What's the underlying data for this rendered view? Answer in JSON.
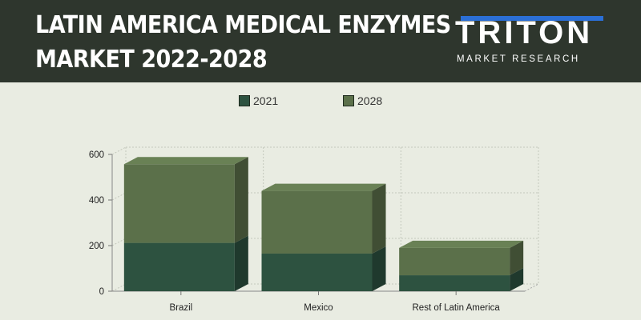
{
  "header": {
    "title_line1": "LATIN AMERICA MEDICAL ENZYMES",
    "title_line2": "MARKET 2022-2028"
  },
  "logo": {
    "name": "TRITON",
    "tagline": "MARKET RESEARCH",
    "accent_color": "#2b6fd6"
  },
  "chart_data": {
    "type": "bar",
    "stacked": true,
    "three_d": true,
    "categories": [
      "Brazil",
      "Mexico",
      "Rest of Latin America"
    ],
    "series": [
      {
        "name": "2021",
        "values": [
          212,
          165,
          70
        ],
        "color": "#2d5240"
      },
      {
        "name": "2028",
        "values": [
          345,
          275,
          120
        ],
        "color": "#5b704a"
      }
    ],
    "ylim": [
      0,
      600
    ],
    "yticks": [
      0,
      200,
      400,
      600
    ],
    "grid": true,
    "legend_position": "top-center"
  }
}
